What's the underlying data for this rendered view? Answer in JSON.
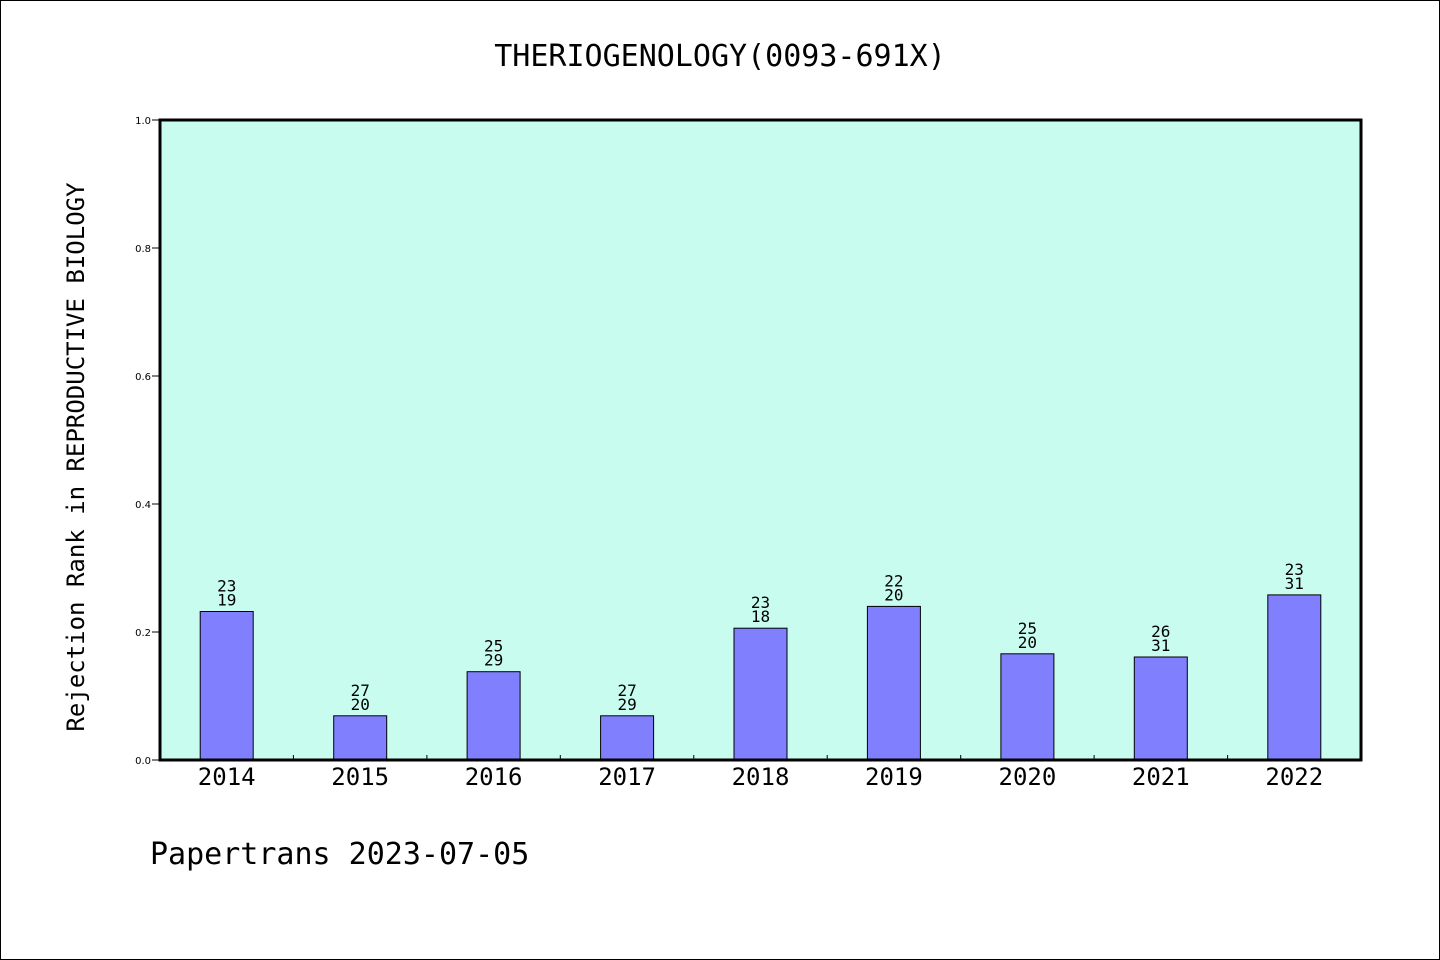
{
  "chart_data": {
    "type": "bar",
    "title": "THERIOGENOLOGY(0093-691X)",
    "ylabel": "Rejection Rank in REPRODUCTIVE BIOLOGY",
    "xlabel": "",
    "categories": [
      "2014",
      "2015",
      "2016",
      "2017",
      "2018",
      "2019",
      "2020",
      "2021",
      "2022"
    ],
    "values": [
      0.232,
      0.069,
      0.138,
      0.069,
      0.206,
      0.24,
      0.166,
      0.161,
      0.258
    ],
    "bar_labels": [
      [
        "23",
        "19"
      ],
      [
        "27",
        "20"
      ],
      [
        "25",
        "29"
      ],
      [
        "27",
        "29"
      ],
      [
        "23",
        "18"
      ],
      [
        "22",
        "20"
      ],
      [
        "25",
        "20"
      ],
      [
        "26",
        "31"
      ],
      [
        "23",
        "31"
      ]
    ],
    "ylim": [
      0.0,
      1.0
    ],
    "yticks": [
      "0.0",
      "0.2",
      "0.4",
      "0.6",
      "0.8",
      "1.0"
    ],
    "grid": false,
    "legend": "none",
    "colors": {
      "plot_bg": "#c8fcee",
      "bar": "#8080ff",
      "bar_edge": "#000000"
    }
  },
  "footer": {
    "text": "Papertrans 2023-07-05"
  }
}
